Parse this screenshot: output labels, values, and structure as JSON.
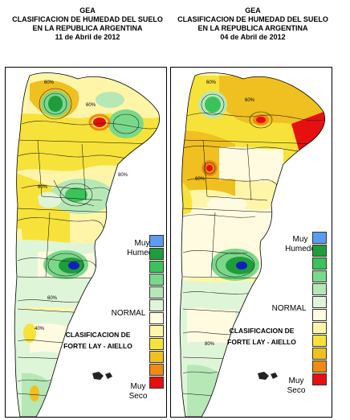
{
  "maps": [
    {
      "org": "GEA",
      "title_line1": "CLASIFICACION DE HUMEDAD DEL SUELO",
      "title_line2": "EN LA REPUBLICA ARGENTINA",
      "date": "11 de Abril de 2012",
      "contour_labels": [
        "60%",
        "60%",
        "60%",
        "80%",
        "60%",
        "40%"
      ]
    },
    {
      "org": "GEA",
      "title_line1": "CLASIFICACION DE HUMEDAD DEL SUELO",
      "title_line2": "EN LA REPUBLICA ARGENTINA",
      "date": "04 de Abril de 2012",
      "contour_labels": [
        "60%",
        "60%",
        "60%",
        "80%"
      ]
    }
  ],
  "legend": {
    "wet_label_1": "Muy",
    "wet_label_2": "Humedo",
    "normal_label": "NORMAL",
    "dry_label_1": "Muy",
    "dry_label_2": "Seco",
    "classes": [
      {
        "color": "#5b9bf0"
      },
      {
        "color": "#1f9d3a"
      },
      {
        "color": "#3cc25a"
      },
      {
        "color": "#7ad88a"
      },
      {
        "color": "#b6e8b6"
      },
      {
        "color": "#dff5d8"
      },
      {
        "color": "#fffbe0"
      },
      {
        "color": "#fff5a8"
      },
      {
        "color": "#f7e23a"
      },
      {
        "color": "#f0c020"
      },
      {
        "color": "#f08a10"
      },
      {
        "color": "#e61010"
      }
    ]
  },
  "classification_1": "CLASIFICACION DE",
  "classification_2": "FORTE LAY - AIELLO"
}
